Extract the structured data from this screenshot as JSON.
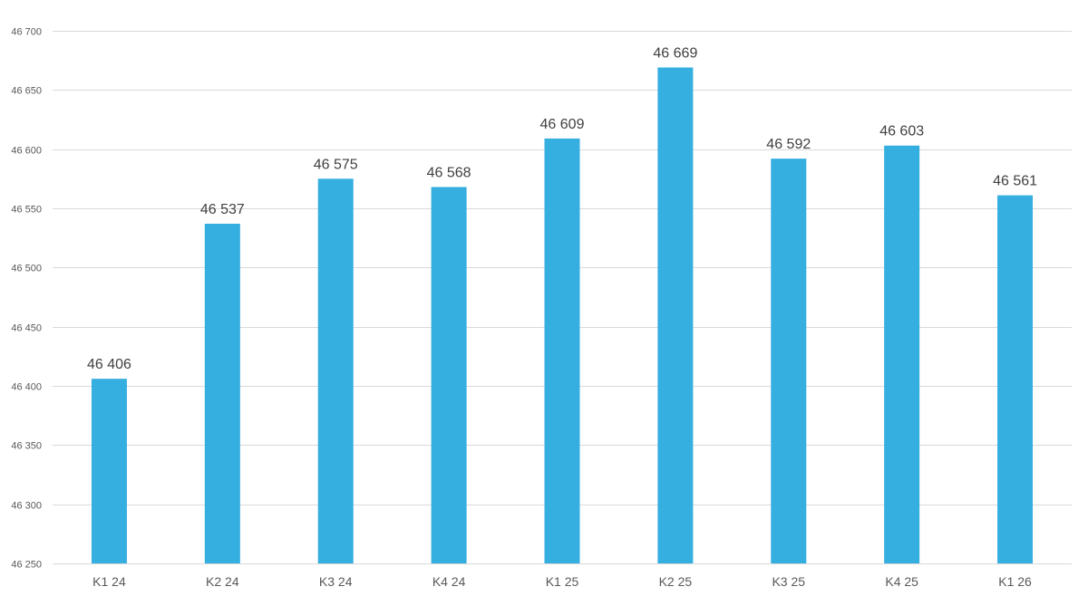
{
  "chart_data": {
    "type": "bar",
    "categories": [
      "K1 24",
      "K2 24",
      "K3 24",
      "K4 24",
      "K1 25",
      "K2 25",
      "K3 25",
      "K4 25",
      "K1 26"
    ],
    "values": [
      46406,
      46537,
      46575,
      46568,
      46609,
      46669,
      46592,
      46603,
      46561
    ],
    "value_labels": [
      "46 406",
      "46 537",
      "46 575",
      "46 568",
      "46 609",
      "46 669",
      "46 592",
      "46 603",
      "46 561"
    ],
    "ylim": [
      46250,
      46700
    ],
    "yticks": [
      46250,
      46300,
      46350,
      46400,
      46450,
      46500,
      46550,
      46600,
      46650,
      46700
    ],
    "ytick_labels": [
      "46 250",
      "46 300",
      "46 350",
      "46 400",
      "46 450",
      "46 500",
      "46 550",
      "46 600",
      "46 650",
      "46 700"
    ],
    "grid": true,
    "bar_color": "#35aee0",
    "title": "",
    "xlabel": "",
    "ylabel": ""
  }
}
